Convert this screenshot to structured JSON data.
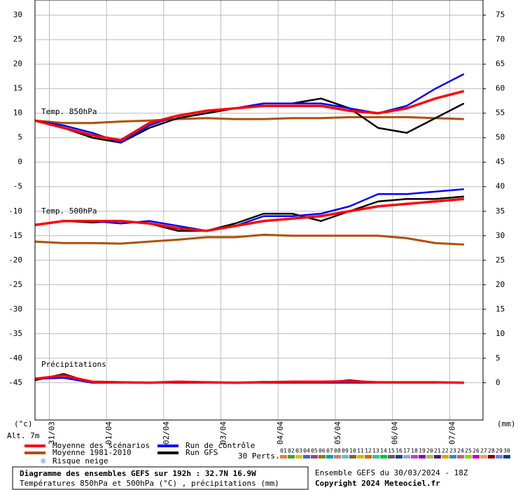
{
  "chart_data": {
    "type": "line",
    "annotations": {
      "t850": "Temp. 850hPa",
      "t500": "Temp. 500hPa",
      "precip": "Précipitations",
      "left_unit": "(°c)",
      "right_unit": "(mm)",
      "altitude": "Alt. 7m",
      "snow": "Risque neige",
      "members_label": "30 Perts."
    },
    "title": "Diagramme des ensembles GEFS sur 192h : 32.7N 16.9W",
    "subtitle": "Températures 850hPa et 500hPa (°C) , précipitations (mm)",
    "run": "Ensemble GEFS du 30/03/2024 - 18Z",
    "copyright": "Copyright 2024 Meteociel.fr",
    "x": [
      0,
      12,
      24,
      36,
      48,
      60,
      72,
      84,
      96,
      108,
      120,
      132,
      144,
      156,
      168,
      180
    ],
    "xlim": [
      0,
      188
    ],
    "xticks": [
      {
        "value": 6,
        "label": "31/03"
      },
      {
        "value": 30,
        "label": "01/04"
      },
      {
        "value": 54,
        "label": "02/04"
      },
      {
        "value": 78,
        "label": "03/04"
      },
      {
        "value": 102,
        "label": "04/04"
      },
      {
        "value": 126,
        "label": "05/04"
      },
      {
        "value": 150,
        "label": "06/04"
      },
      {
        "value": 174,
        "label": "07/04"
      }
    ],
    "ylim": [
      -52.6,
      33.1
    ],
    "yticks": [
      30,
      25,
      20,
      15,
      10,
      5,
      0,
      -5,
      -10,
      -15,
      -20,
      -25,
      -30,
      -35,
      -40,
      -45
    ],
    "y2lim": [
      -7.6,
      78.1
    ],
    "y2ticks": [
      75,
      70,
      65,
      60,
      55,
      50,
      45,
      40,
      35,
      30,
      25,
      20,
      15,
      10,
      5,
      0
    ],
    "grid": true,
    "series": [
      {
        "name": "Moyenne 1981-2010",
        "color": "#b05000",
        "t850": [
          8.5,
          8,
          8,
          8.3,
          8.5,
          8.8,
          9,
          8.8,
          8.8,
          9,
          9,
          9.2,
          9.2,
          9.2,
          9,
          8.8
        ],
        "t500": [
          -16.2,
          -16.5,
          -16.5,
          -16.6,
          -16.2,
          -15.8,
          -15.3,
          -15.3,
          -14.8,
          -15,
          -15,
          -15,
          -15,
          -15.5,
          -16.5,
          -16.8
        ]
      },
      {
        "name": "Run GFS",
        "color": "#000000",
        "t850": [
          8.5,
          7,
          5,
          4,
          7,
          9,
          10,
          11,
          12,
          12,
          13,
          11,
          7,
          6,
          9,
          12
        ],
        "t500": [
          -12.8,
          -12,
          -12.3,
          -12,
          -12.5,
          -14,
          -14,
          -12.5,
          -10.5,
          -10.5,
          -12,
          -10,
          -8,
          -7.5,
          -7.5,
          -7
        ],
        "precip": [
          0.5,
          1.8,
          0,
          0,
          0,
          0,
          0,
          0,
          0,
          0,
          0,
          0.5,
          0,
          0,
          0,
          0
        ]
      },
      {
        "name": "Run de contrôle",
        "color": "#0000ff",
        "t850": [
          8.5,
          7.5,
          6,
          4,
          7.5,
          9.5,
          10.5,
          11,
          12,
          12,
          12,
          11,
          10,
          11.5,
          15,
          18
        ],
        "t500": [
          -12.8,
          -12,
          -12,
          -12.5,
          -12,
          -13,
          -14,
          -13,
          -11,
          -11,
          -10.5,
          -9,
          -6.5,
          -6.5,
          -6,
          -5.5
        ],
        "precip": [
          0.8,
          1,
          0,
          0,
          0,
          0,
          0,
          0,
          0.2,
          0,
          0,
          0,
          0,
          0,
          0,
          0
        ]
      },
      {
        "name": "Moyenne des scénarios",
        "color": "#ff0000",
        "t850": [
          8.5,
          7,
          5.5,
          4.5,
          8,
          9.5,
          10.5,
          11,
          11.5,
          11.5,
          11.5,
          10.5,
          10,
          11,
          13,
          14.5
        ],
        "t500": [
          -12.8,
          -12,
          -12,
          -12,
          -12.5,
          -13.5,
          -14,
          -13,
          -12,
          -11.5,
          -11,
          -10,
          -9,
          -8.5,
          -8,
          -7.5
        ],
        "precip": [
          0.8,
          1.5,
          0.2,
          0.1,
          0,
          0.2,
          0.1,
          0,
          0.1,
          0.2,
          0.2,
          0.3,
          0.1,
          0.1,
          0.1,
          0
        ]
      }
    ],
    "members": [
      {
        "name": "01",
        "color": "#e08040"
      },
      {
        "name": "02",
        "color": "#40a040"
      },
      {
        "name": "03",
        "color": "#e0c000"
      },
      {
        "name": "04",
        "color": "#4060e0"
      },
      {
        "name": "05",
        "color": "#a04080"
      },
      {
        "name": "06",
        "color": "#808000"
      },
      {
        "name": "07",
        "color": "#00a0a0"
      },
      {
        "name": "08",
        "color": "#c08080"
      },
      {
        "name": "09",
        "color": "#60c0e0"
      },
      {
        "name": "10",
        "color": "#806040"
      },
      {
        "name": "11",
        "color": "#c0c000"
      },
      {
        "name": "12",
        "color": "#e06000"
      },
      {
        "name": "13",
        "color": "#40c080"
      },
      {
        "name": "14",
        "color": "#00c040"
      },
      {
        "name": "15",
        "color": "#606060"
      },
      {
        "name": "16",
        "color": "#204080"
      },
      {
        "name": "17",
        "color": "#a0a0e0"
      },
      {
        "name": "18",
        "color": "#c040c0"
      },
      {
        "name": "19",
        "color": "#8000c0"
      },
      {
        "name": "20",
        "color": "#a0c040"
      },
      {
        "name": "21",
        "color": "#402080"
      },
      {
        "name": "22",
        "color": "#e0a000"
      },
      {
        "name": "23",
        "color": "#4080c0"
      },
      {
        "name": "24",
        "color": "#c06080"
      },
      {
        "name": "25",
        "color": "#80e000"
      },
      {
        "name": "26",
        "color": "#c000c0"
      },
      {
        "name": "27",
        "color": "#e0a060"
      },
      {
        "name": "28",
        "color": "#800000"
      },
      {
        "name": "29",
        "color": "#6080ff"
      },
      {
        "name": "30",
        "color": "#004080"
      }
    ]
  }
}
